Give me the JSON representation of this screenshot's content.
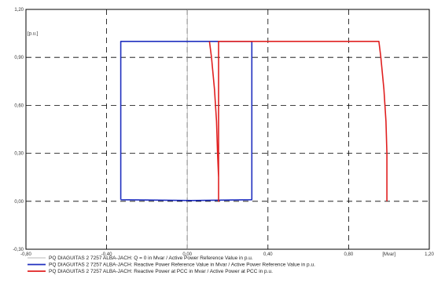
{
  "chart_data": {
    "type": "line",
    "x_axis": {
      "range": [
        -0.8,
        1.2
      ],
      "ticks": [
        "-0,80",
        "-0,40",
        "0,00",
        "0,40",
        "0,80",
        "1,20"
      ],
      "tick_values": [
        -0.8,
        -0.4,
        0.0,
        0.4,
        0.8,
        1.2
      ],
      "unit_label": "[Mvar]",
      "unit_label_position": 1.0
    },
    "y_axis": {
      "range": [
        -0.3,
        1.2
      ],
      "ticks": [
        "-0,30",
        "0,00",
        "0,30",
        "0,60",
        "0,90",
        "1,20"
      ],
      "tick_values": [
        -0.3,
        0.0,
        0.3,
        0.6,
        0.9,
        1.2
      ],
      "unit_label": "[p.u.]",
      "unit_label_position": 1.05
    },
    "grid": true,
    "grid_style": "dashed",
    "legend_position": "bottom",
    "series": [
      {
        "name": "PQ DIAGUITAS 2 7257 ALBA-JACH: Q = 0 in Mvar / Active Power Reference Value in p.u.",
        "color": "#a0a0a0",
        "points": [
          [
            0.0,
            -0.3
          ],
          [
            0.0,
            1.2
          ]
        ]
      },
      {
        "name": "PQ DIAGUITAS 2 7257 ALBA-JACH: Reactive Power Reference Value in Mvar / Active Power Reference Value in p.u.",
        "color": "#1f2fbf",
        "points": [
          [
            -0.33,
            0.01
          ],
          [
            -0.33,
            1.0
          ],
          [
            0.32,
            1.0
          ],
          [
            0.32,
            0.01
          ],
          [
            0.02,
            0.005
          ],
          [
            -0.33,
            0.01
          ]
        ]
      },
      {
        "name": "PQ DIAGUITAS 2 7257 ALBA-JACH: Reactive Power at PCC in Mvar / Active Power at PCC in p.u.",
        "color": "#e02020",
        "points": [
          [
            0.11,
            1.0
          ],
          [
            0.12,
            0.9
          ],
          [
            0.135,
            0.7
          ],
          [
            0.145,
            0.5
          ],
          [
            0.15,
            0.3
          ],
          [
            0.155,
            0.15
          ],
          [
            0.155,
            0.0
          ],
          [
            0.155,
            1.0
          ],
          [
            0.95,
            1.0
          ],
          [
            0.96,
            0.9
          ],
          [
            0.975,
            0.7
          ],
          [
            0.985,
            0.5
          ],
          [
            0.99,
            0.3
          ],
          [
            0.99,
            0.1
          ],
          [
            0.99,
            0.0
          ]
        ]
      }
    ]
  }
}
